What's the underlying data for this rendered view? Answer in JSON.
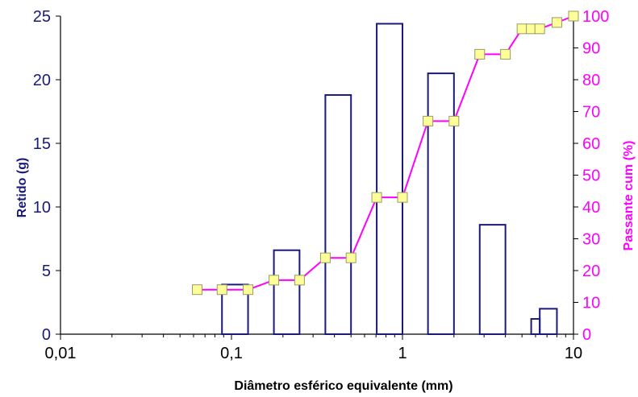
{
  "chart_data": {
    "type": "bar",
    "title": "",
    "xlabel": "Diâmetro esférico equivalente (mm)",
    "ylabel": "Retido (g)",
    "y2label": "Passante cum (%)",
    "x_scale": "log",
    "xlim": [
      0.01,
      10
    ],
    "x_ticks": [
      0.01,
      0.1,
      1,
      10
    ],
    "x_tick_labels": [
      "0,01",
      "0,1",
      "1",
      "10"
    ],
    "ylim": [
      0,
      25
    ],
    "y_ticks": [
      0,
      5,
      10,
      15,
      20,
      25
    ],
    "y_tick_labels": [
      "0",
      "5",
      "10",
      "15",
      "20",
      "25"
    ],
    "y2lim": [
      0,
      100
    ],
    "y2_ticks": [
      0,
      10,
      20,
      30,
      40,
      50,
      60,
      70,
      80,
      90,
      100
    ],
    "y2_tick_labels": [
      "0",
      "10",
      "20",
      "30",
      "40",
      "50",
      "60",
      "70",
      "80",
      "90",
      "100"
    ],
    "grid": false,
    "bar_color": "#1a1a7a",
    "line_color": "#ff00ff",
    "marker_fill": "#ffff99",
    "bars": [
      {
        "x0": 0.063,
        "x1": 0.088,
        "value": 0
      },
      {
        "x0": 0.088,
        "x1": 0.125,
        "value": 3.9
      },
      {
        "x0": 0.125,
        "x1": 0.177,
        "value": 0
      },
      {
        "x0": 0.177,
        "x1": 0.25,
        "value": 6.6
      },
      {
        "x0": 0.25,
        "x1": 0.354,
        "value": 0
      },
      {
        "x0": 0.354,
        "x1": 0.5,
        "value": 18.8
      },
      {
        "x0": 0.5,
        "x1": 0.707,
        "value": 0
      },
      {
        "x0": 0.707,
        "x1": 1.0,
        "value": 24.4
      },
      {
        "x0": 1.0,
        "x1": 1.41,
        "value": 0
      },
      {
        "x0": 1.41,
        "x1": 2.0,
        "value": 20.5
      },
      {
        "x0": 2.0,
        "x1": 2.83,
        "value": 0
      },
      {
        "x0": 2.83,
        "x1": 4.0,
        "value": 8.6
      },
      {
        "x0": 4.0,
        "x1": 5.66,
        "value": 0
      },
      {
        "x0": 5.66,
        "x1": 6.35,
        "value": 1.2
      },
      {
        "x0": 6.35,
        "x1": 8.0,
        "value": 2.0
      },
      {
        "x0": 8.0,
        "x1": 10.0,
        "value": 0
      }
    ],
    "series": [
      {
        "x": [
          0.063,
          0.088,
          0.125,
          0.177,
          0.25,
          0.354,
          0.5,
          0.707,
          1.0,
          1.41,
          2.0,
          2.83,
          4.0,
          5.0,
          5.66,
          6.35,
          8.0,
          10.0
        ],
        "values": [
          14,
          14,
          14,
          17,
          17,
          24,
          24,
          43,
          43,
          67,
          67,
          88,
          88,
          96,
          96,
          96,
          98,
          100
        ]
      }
    ]
  }
}
